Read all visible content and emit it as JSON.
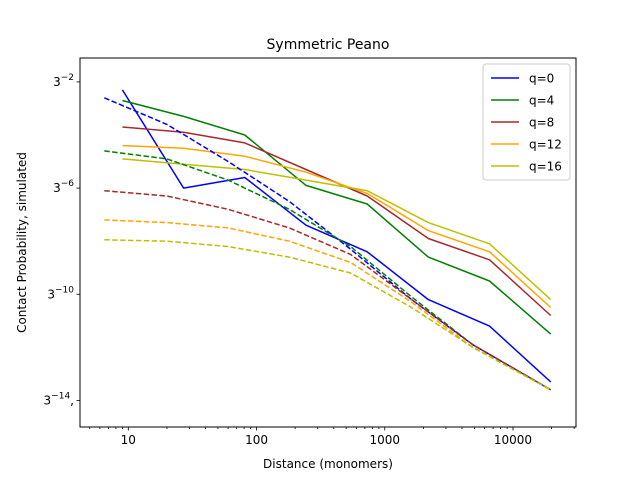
{
  "chart_data": {
    "type": "line",
    "title": "Symmetric Peano",
    "xlabel": "Distance (monomers)",
    "ylabel": "Contact Probability, simulated",
    "x_scale": "log10",
    "y_scale": "log3",
    "xlim": [
      4.2,
      31000
    ],
    "ylim_log3_exponent": [
      -15.0,
      -1.1
    ],
    "x_ticks": [
      {
        "value": 10,
        "label": "10"
      },
      {
        "value": 100,
        "label": "100"
      },
      {
        "value": 1000,
        "label": "1000"
      },
      {
        "value": 10000,
        "label": "10000"
      }
    ],
    "y_ticks": [
      {
        "exponent": -2,
        "base": "3",
        "sup": "−2",
        "suffix": ""
      },
      {
        "exponent": -6,
        "base": "3",
        "sup": "−6",
        "suffix": ""
      },
      {
        "exponent": -10,
        "base": "3",
        "sup": "−10",
        "suffix": ""
      },
      {
        "exponent": -14,
        "base": "3",
        "sup": "−14",
        "suffix": ","
      }
    ],
    "grid": false,
    "legend_position": "top-right",
    "series": [
      {
        "name": "q=0",
        "color": "#0000ff",
        "style": "solid",
        "x": [
          9,
          27,
          81,
          243,
          729,
          2187,
          6561,
          19683
        ],
        "log3_y": [
          -2.3,
          -6.0,
          -5.6,
          -7.4,
          -8.4,
          -10.2,
          -11.2,
          -13.3
        ]
      },
      {
        "name": "q=4",
        "color": "#008000",
        "style": "solid",
        "x": [
          9,
          27,
          81,
          243,
          729,
          2187,
          6561,
          19683
        ],
        "log3_y": [
          -2.7,
          -3.3,
          -4.0,
          -5.9,
          -6.6,
          -8.6,
          -9.5,
          -11.5
        ]
      },
      {
        "name": "q=8",
        "color": "#a52a2a",
        "style": "solid",
        "x": [
          9,
          27,
          81,
          243,
          729,
          2187,
          6561,
          19683
        ],
        "log3_y": [
          -3.7,
          -3.9,
          -4.3,
          -5.3,
          -6.3,
          -7.9,
          -8.7,
          -10.8
        ]
      },
      {
        "name": "q=12",
        "color": "#ffa500",
        "style": "solid",
        "x": [
          9,
          27,
          81,
          243,
          729,
          2187,
          6561,
          19683
        ],
        "log3_y": [
          -4.4,
          -4.5,
          -4.8,
          -5.4,
          -6.2,
          -7.6,
          -8.4,
          -10.5
        ]
      },
      {
        "name": "q=16",
        "color": "#bfbf00",
        "style": "solid",
        "x": [
          9,
          27,
          81,
          243,
          729,
          2187,
          6561,
          19683
        ],
        "log3_y": [
          -4.9,
          -5.1,
          -5.3,
          -5.7,
          -6.1,
          -7.3,
          -8.1,
          -10.2
        ]
      },
      {
        "name": "",
        "color": "#0000ff",
        "style": "dashed",
        "x": [
          6.5,
          20,
          60,
          180,
          540,
          1620,
          4860,
          19683
        ],
        "log3_y": [
          -2.6,
          -3.6,
          -5.0,
          -6.5,
          -8.3,
          -10.2,
          -11.9,
          -13.6
        ]
      },
      {
        "name": "",
        "color": "#008000",
        "style": "dashed",
        "x": [
          6.5,
          20,
          60,
          180,
          540,
          1620,
          4860,
          19683
        ],
        "log3_y": [
          -4.6,
          -4.9,
          -5.7,
          -6.8,
          -8.2,
          -10.1,
          -11.9,
          -13.6
        ]
      },
      {
        "name": "",
        "color": "#a52a2a",
        "style": "dashed",
        "x": [
          6.5,
          20,
          60,
          180,
          540,
          1620,
          4860,
          19683
        ],
        "log3_y": [
          -6.1,
          -6.3,
          -6.8,
          -7.5,
          -8.5,
          -10.2,
          -11.9,
          -13.6
        ]
      },
      {
        "name": "",
        "color": "#ffa500",
        "style": "dashed",
        "x": [
          6.5,
          20,
          60,
          180,
          540,
          1620,
          4860,
          19683
        ],
        "log3_y": [
          -7.2,
          -7.3,
          -7.5,
          -8.0,
          -8.8,
          -10.3,
          -12.0,
          -13.6
        ]
      },
      {
        "name": "",
        "color": "#bfbf00",
        "style": "dashed",
        "x": [
          6.5,
          20,
          60,
          180,
          540,
          1620,
          4860,
          19683
        ],
        "log3_y": [
          -7.95,
          -8.0,
          -8.2,
          -8.6,
          -9.2,
          -10.5,
          -12.0,
          -13.6
        ]
      }
    ]
  }
}
